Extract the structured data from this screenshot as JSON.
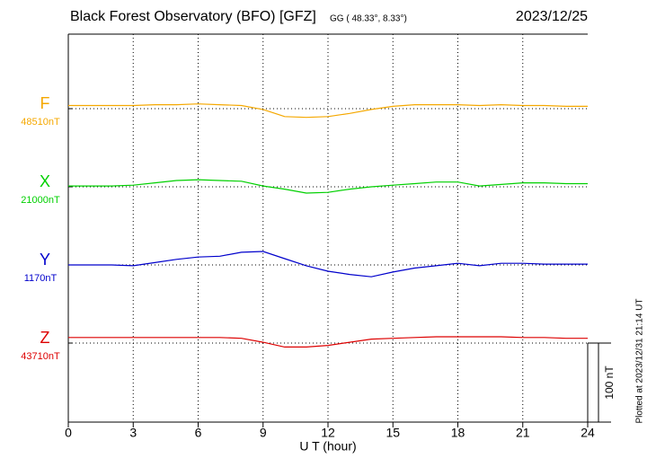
{
  "chart_data": {
    "type": "line",
    "title": "Black Forest Observatory (BFO)  [GFZ]",
    "subtitle": "GG ( 48.33°,  8.33°)",
    "date": "2023/12/25",
    "xlabel": "U T (hour)",
    "footnote": "Plotted at 2023/12/31 21:14 UT",
    "xlim": [
      0,
      24
    ],
    "xticks": [
      0,
      3,
      6,
      9,
      12,
      15,
      18,
      21,
      24
    ],
    "grid": true,
    "scale": {
      "value": 100,
      "label": "100 nT"
    },
    "x": [
      0,
      1,
      2,
      3,
      4,
      5,
      6,
      7,
      8,
      9,
      10,
      11,
      12,
      13,
      14,
      15,
      16,
      17,
      18,
      19,
      20,
      21,
      22,
      23,
      24
    ],
    "series": [
      {
        "name": "F",
        "color": "#f5a800",
        "baseline": {
          "value": 48510,
          "label": "48510nT"
        },
        "values": [
          48514,
          48514,
          48514,
          48514,
          48515,
          48515,
          48516,
          48515,
          48514,
          48509,
          48500,
          48499,
          48500,
          48504,
          48509,
          48513,
          48515,
          48515,
          48515,
          48514,
          48515,
          48514,
          48514,
          48513,
          48513
        ]
      },
      {
        "name": "X",
        "color": "#00d000",
        "baseline": {
          "value": 21000,
          "label": "21000nT"
        },
        "values": [
          21001,
          21001,
          21001,
          21002,
          21005,
          21008,
          21009,
          21008,
          21007,
          21001,
          20997,
          20992,
          20993,
          20997,
          21000,
          21002,
          21004,
          21006,
          21006,
          21001,
          21003,
          21005,
          21005,
          21004,
          21004
        ]
      },
      {
        "name": "Y",
        "color": "#0000cc",
        "baseline": {
          "value": 1170,
          "label": "1170nT"
        },
        "values": [
          1170,
          1170,
          1170,
          1169,
          1173,
          1177,
          1180,
          1181,
          1186,
          1187,
          1178,
          1169,
          1162,
          1158,
          1155,
          1161,
          1166,
          1169,
          1172,
          1169,
          1172,
          1172,
          1171,
          1171,
          1171
        ]
      },
      {
        "name": "Z",
        "color": "#dd0000",
        "baseline": {
          "value": 43710,
          "label": "43710nT"
        },
        "values": [
          43717,
          43717,
          43717,
          43717,
          43717,
          43717,
          43717,
          43717,
          43716,
          43711,
          43705,
          43705,
          43707,
          43711,
          43715,
          43716,
          43717,
          43718,
          43718,
          43718,
          43718,
          43717,
          43717,
          43716,
          43716
        ]
      }
    ]
  }
}
